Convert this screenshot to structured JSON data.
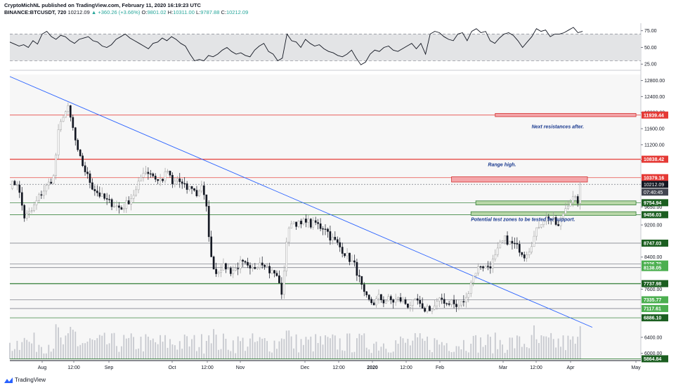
{
  "header": {
    "publisher_line": "CryptoMichNL published on TradingView.com, February 11, 2020 16:19:23 UTC",
    "symbol": "BINANCE:BTCUSDT, 720",
    "last": "10212.09",
    "change": "+360.26 (+3.66%)",
    "o_label": "O:",
    "o": "9801.02",
    "h_label": "H:",
    "h": "10311.00",
    "l_label": "L:",
    "l": "9787.88",
    "c_label": "C:",
    "c": "10212.09"
  },
  "footer": {
    "brand": "TradingView"
  },
  "colors": {
    "candle_up": "#9e9e9e",
    "candle_down": "#131722",
    "resistance_line": "#e53935",
    "support_line": "#2e7d32",
    "gray_line": "#787b86",
    "trendline": "#2962ff",
    "resistance_zone": "#f4a6aa",
    "support_zone": "#b9d7a8",
    "annotation_text": "#1a3a8f"
  },
  "chart_data": [
    {
      "type": "line",
      "panel": "rsi",
      "yticks": [
        "75.00",
        "50.00",
        "25.00"
      ],
      "band": [
        30,
        70
      ],
      "ylim": [
        20,
        82
      ],
      "series": [
        {
          "values": [
            58,
            55,
            52,
            54,
            50,
            60,
            55,
            70,
            74,
            66,
            62,
            68,
            66,
            60,
            56,
            62,
            64,
            66,
            60,
            58,
            52,
            50,
            54,
            62,
            66,
            70,
            64,
            60,
            56,
            52,
            48,
            56,
            58,
            64,
            60,
            66,
            62,
            56,
            52,
            40,
            30,
            32,
            30,
            38,
            36,
            40,
            46,
            50,
            44,
            40,
            42,
            38,
            36,
            46,
            52,
            56,
            44,
            40,
            30,
            34,
            70,
            60,
            58,
            50,
            62,
            56,
            52,
            54,
            48,
            44,
            42,
            38,
            36,
            40,
            46,
            34,
            24,
            28,
            40,
            46,
            44,
            50,
            52,
            46,
            44,
            48,
            52,
            56,
            48,
            56,
            40,
            70,
            74,
            72,
            66,
            62,
            60,
            70,
            72,
            60,
            74,
            78,
            72,
            74,
            60,
            56,
            64,
            70,
            72,
            68,
            60,
            50,
            58,
            66,
            78,
            74,
            76,
            66,
            70,
            70,
            72,
            76,
            80,
            72,
            74
          ]
        }
      ]
    },
    {
      "type": "candlestick",
      "panel": "price",
      "x_ticks": [
        "Aug",
        "12:00",
        "Sep",
        "Oct",
        "12:00",
        "Nov",
        "Dec",
        "12:00",
        "2020",
        "12:00",
        "Feb",
        "Mar",
        "12:00",
        "Apr",
        "May"
      ],
      "y_ticks": [
        "12800.00",
        "12400.00",
        "12000.00",
        "11600.00",
        "11200.00",
        "10800.00",
        "9650.00",
        "9200.00",
        "8400.00",
        "7600.00",
        "6400.00",
        "6000.00"
      ],
      "ylim": [
        5820,
        12950
      ],
      "close_path": [
        [
          0,
          10200
        ],
        [
          3,
          10250
        ],
        [
          6,
          9400
        ],
        [
          9,
          9550
        ],
        [
          12,
          9900
        ],
        [
          15,
          10150
        ],
        [
          18,
          10400
        ],
        [
          20,
          11500
        ],
        [
          22,
          11950
        ],
        [
          24,
          12100
        ],
        [
          26,
          11600
        ],
        [
          28,
          11000
        ],
        [
          31,
          10550
        ],
        [
          34,
          10150
        ],
        [
          37,
          9950
        ],
        [
          40,
          9800
        ],
        [
          43,
          9700
        ],
        [
          46,
          9600
        ],
        [
          49,
          9800
        ],
        [
          52,
          10050
        ],
        [
          55,
          10550
        ],
        [
          58,
          10500
        ],
        [
          61,
          10300
        ],
        [
          63,
          10350
        ],
        [
          65,
          10550
        ],
        [
          67,
          10200
        ],
        [
          69,
          10350
        ],
        [
          71,
          10200
        ],
        [
          73,
          10100
        ],
        [
          75,
          10150
        ],
        [
          77,
          9950
        ],
        [
          79,
          10200
        ],
        [
          81,
          9600
        ],
        [
          83,
          8350
        ],
        [
          85,
          8000
        ],
        [
          87,
          8150
        ],
        [
          89,
          8150
        ],
        [
          91,
          8050
        ],
        [
          93,
          8100
        ],
        [
          95,
          8250
        ],
        [
          97,
          8200
        ],
        [
          99,
          8050
        ],
        [
          101,
          8150
        ],
        [
          103,
          8300
        ],
        [
          105,
          8250
        ],
        [
          107,
          8050
        ],
        [
          109,
          8000
        ],
        [
          111,
          7800
        ],
        [
          112,
          7400
        ],
        [
          114,
          8800
        ],
        [
          116,
          9300
        ],
        [
          118,
          9250
        ],
        [
          120,
          9200
        ],
        [
          122,
          9350
        ],
        [
          124,
          9200
        ],
        [
          126,
          9250
        ],
        [
          128,
          9150
        ],
        [
          130,
          9150
        ],
        [
          132,
          8900
        ],
        [
          134,
          8800
        ],
        [
          136,
          8650
        ],
        [
          138,
          8500
        ],
        [
          140,
          8350
        ],
        [
          142,
          8200
        ],
        [
          144,
          7850
        ],
        [
          146,
          7450
        ],
        [
          148,
          7300
        ],
        [
          150,
          7250
        ],
        [
          152,
          7400
        ],
        [
          154,
          7300
        ],
        [
          156,
          7350
        ],
        [
          158,
          7300
        ],
        [
          160,
          7350
        ],
        [
          162,
          7300
        ],
        [
          164,
          7200
        ],
        [
          166,
          7250
        ],
        [
          168,
          7300
        ],
        [
          170,
          7050
        ],
        [
          172,
          7150
        ],
        [
          174,
          7100
        ],
        [
          176,
          7250
        ],
        [
          178,
          7350
        ],
        [
          180,
          7250
        ],
        [
          182,
          7300
        ],
        [
          184,
          7150
        ],
        [
          186,
          7250
        ],
        [
          188,
          7350
        ],
        [
          190,
          7800
        ],
        [
          192,
          8050
        ],
        [
          194,
          8200
        ],
        [
          196,
          8150
        ],
        [
          198,
          8200
        ],
        [
          200,
          8400
        ],
        [
          202,
          8700
        ],
        [
          204,
          8850
        ],
        [
          206,
          8750
        ],
        [
          208,
          8700
        ],
        [
          210,
          8600
        ],
        [
          212,
          8450
        ],
        [
          214,
          8600
        ],
        [
          216,
          8900
        ],
        [
          218,
          9200
        ],
        [
          220,
          9350
        ],
        [
          222,
          9400
        ],
        [
          224,
          9300
        ],
        [
          226,
          9150
        ],
        [
          228,
          9500
        ],
        [
          230,
          9750
        ],
        [
          232,
          9850
        ],
        [
          234,
          9800
        ],
        [
          235,
          10200
        ]
      ],
      "horizontal_levels": [
        {
          "value": 11939.44,
          "label": "11939.44",
          "kind": "resistance"
        },
        {
          "value": 10838.42,
          "label": "10838.42",
          "kind": "resistance"
        },
        {
          "value": 10379.16,
          "label": "10379.16",
          "kind": "resistance"
        },
        {
          "value": 9754.94,
          "label": "9754.94",
          "kind": "support"
        },
        {
          "value": 9456.03,
          "label": "9456.03",
          "kind": "support"
        },
        {
          "value": 8747.03,
          "label": "8747.03",
          "kind": "support"
        },
        {
          "value": 8226.7,
          "label": "8226.70",
          "kind": "support"
        },
        {
          "value": 8138.05,
          "label": "8138.05",
          "kind": "support"
        },
        {
          "value": 7737.98,
          "label": "7737.98",
          "kind": "support"
        },
        {
          "value": 7335.77,
          "label": "7335.77",
          "kind": "support"
        },
        {
          "value": 7117.61,
          "label": "7117.61",
          "kind": "support"
        },
        {
          "value": 6886.1,
          "label": "6886.10",
          "kind": "support"
        },
        {
          "value": 5864.84,
          "label": "5864.84",
          "kind": "support"
        }
      ],
      "last_price": {
        "label": "10212.09",
        "countdown": "07:40:45"
      },
      "trendline": {
        "start": [
          0,
          12900
        ],
        "end": [
          240,
          6650
        ]
      },
      "zones": [
        {
          "kind": "resistance",
          "from": [
            200,
            11900
          ],
          "to": [
            258,
            11980
          ]
        },
        {
          "kind": "resistance",
          "from": [
            182,
            10270
          ],
          "to": [
            238,
            10400
          ]
        },
        {
          "kind": "support",
          "from": [
            192,
            9700
          ],
          "to": [
            258,
            9800
          ]
        },
        {
          "kind": "support",
          "from": [
            190,
            9440
          ],
          "to": [
            258,
            9530
          ]
        }
      ],
      "annotations": [
        {
          "text": "Next resistances after.",
          "at": [
            215,
            11610
          ]
        },
        {
          "text": "Range high.",
          "at": [
            197,
            10660
          ]
        },
        {
          "text": "Potential test zones to be tested for support.",
          "at": [
            190,
            9300
          ]
        }
      ],
      "volume": {
        "ylim": [
          0,
          1
        ]
      }
    }
  ]
}
